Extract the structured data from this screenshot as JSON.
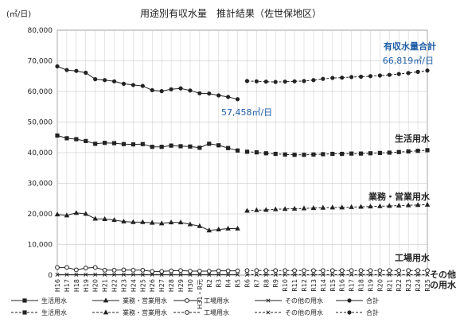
{
  "chart_data": {
    "type": "line",
    "title": "用途別有収水量　推計結果（佐世保地区）",
    "ylabel": "(㎥/日)",
    "ylim": [
      0,
      80000
    ],
    "yticks": [
      "0",
      "10,000",
      "20,000",
      "30,000",
      "40,000",
      "50,000",
      "60,000",
      "70,000",
      "80,000"
    ],
    "ytick_values": [
      0,
      10000,
      20000,
      30000,
      40000,
      50000,
      60000,
      70000,
      80000
    ],
    "grid": true,
    "categories": [
      "H16",
      "H17",
      "H18",
      "H19",
      "H20",
      "H21",
      "H22",
      "H23",
      "H24",
      "H25",
      "H26",
      "H27",
      "H28",
      "H29",
      "H30",
      "H31・R元",
      "R2",
      "R3",
      "R4",
      "R5",
      "R6",
      "R7",
      "R8",
      "R9",
      "R10",
      "R11",
      "R12",
      "R13",
      "R14",
      "R15",
      "R16",
      "R17",
      "R18",
      "R19",
      "R20",
      "R21",
      "R22",
      "R23",
      "R24",
      "R25"
    ],
    "series": [
      {
        "name": "生活用水",
        "kind": "actual",
        "color": "#222222",
        "marker": "square",
        "values": [
          45600,
          44700,
          44400,
          43800,
          42900,
          43200,
          43100,
          42800,
          42700,
          42800,
          41900,
          41900,
          42300,
          42100,
          42000,
          41600,
          42900,
          42400,
          41500,
          40700,
          null,
          null,
          null,
          null,
          null,
          null,
          null,
          null,
          null,
          null,
          null,
          null,
          null,
          null,
          null,
          null,
          null,
          null,
          null,
          null
        ]
      },
      {
        "name": "生活用水",
        "kind": "estimate",
        "color": "#222222",
        "marker": "square",
        "values": [
          null,
          null,
          null,
          null,
          null,
          null,
          null,
          null,
          null,
          null,
          null,
          null,
          null,
          null,
          null,
          null,
          null,
          null,
          null,
          null,
          40300,
          40100,
          39800,
          39600,
          39400,
          39300,
          39300,
          39400,
          39500,
          39600,
          39600,
          39700,
          39700,
          39800,
          39900,
          40000,
          40200,
          40400,
          40600,
          40800
        ]
      },
      {
        "name": "業務・営業用水",
        "kind": "actual",
        "color": "#222222",
        "marker": "triangle",
        "values": [
          19800,
          19500,
          20300,
          20000,
          18400,
          18300,
          18000,
          17500,
          17300,
          17300,
          17100,
          16900,
          17200,
          17200,
          16600,
          16000,
          14600,
          14900,
          15200,
          15200,
          null,
          null,
          null,
          null,
          null,
          null,
          null,
          null,
          null,
          null,
          null,
          null,
          null,
          null,
          null,
          null,
          null,
          null,
          null,
          null
        ]
      },
      {
        "name": "業務・営業用水",
        "kind": "estimate",
        "color": "#222222",
        "marker": "triangle",
        "values": [
          null,
          null,
          null,
          null,
          null,
          null,
          null,
          null,
          null,
          null,
          null,
          null,
          null,
          null,
          null,
          null,
          null,
          null,
          null,
          null,
          21000,
          21200,
          21300,
          21500,
          21600,
          21700,
          21800,
          21900,
          22000,
          22100,
          22100,
          22200,
          22300,
          22400,
          22500,
          22600,
          22700,
          22800,
          22900,
          23000
        ]
      },
      {
        "name": "工場用水",
        "kind": "actual",
        "color": "#222222",
        "marker": "circle",
        "values": [
          2500,
          2500,
          1700,
          2300,
          2500,
          1600,
          1600,
          1700,
          1600,
          1600,
          1200,
          1200,
          1400,
          1500,
          1300,
          1300,
          1300,
          1400,
          1400,
          1400,
          null,
          null,
          null,
          null,
          null,
          null,
          null,
          null,
          null,
          null,
          null,
          null,
          null,
          null,
          null,
          null,
          null,
          null,
          null,
          null
        ]
      },
      {
        "name": "工場用水",
        "kind": "estimate",
        "color": "#222222",
        "marker": "circle",
        "values": [
          null,
          null,
          null,
          null,
          null,
          null,
          null,
          null,
          null,
          null,
          null,
          null,
          null,
          null,
          null,
          null,
          null,
          null,
          null,
          null,
          1500,
          1500,
          1500,
          1500,
          1500,
          1500,
          1500,
          1500,
          1500,
          1500,
          1500,
          1500,
          1500,
          1500,
          1500,
          1500,
          1500,
          1500,
          1500,
          1500
        ]
      },
      {
        "name": "その他の用水",
        "kind": "actual",
        "color": "#222222",
        "marker": "x",
        "values": [
          150,
          150,
          150,
          150,
          150,
          150,
          150,
          150,
          150,
          150,
          150,
          150,
          150,
          150,
          150,
          150,
          150,
          150,
          150,
          150,
          null,
          null,
          null,
          null,
          null,
          null,
          null,
          null,
          null,
          null,
          null,
          null,
          null,
          null,
          null,
          null,
          null,
          null,
          null,
          null
        ]
      },
      {
        "name": "その他の用水",
        "kind": "estimate",
        "color": "#222222",
        "marker": "x",
        "values": [
          null,
          null,
          null,
          null,
          null,
          null,
          null,
          null,
          null,
          null,
          null,
          null,
          null,
          null,
          null,
          null,
          null,
          null,
          null,
          null,
          150,
          150,
          150,
          150,
          150,
          150,
          150,
          150,
          150,
          150,
          150,
          150,
          150,
          150,
          150,
          150,
          150,
          150,
          150,
          150
        ]
      },
      {
        "name": "合計",
        "kind": "actual",
        "color": "#222222",
        "marker": "dot",
        "values": [
          68200,
          67000,
          66700,
          66100,
          64000,
          63700,
          63300,
          62500,
          62100,
          61800,
          60400,
          60100,
          60700,
          61000,
          60300,
          59400,
          59300,
          58700,
          58200,
          57458,
          null,
          null,
          null,
          null,
          null,
          null,
          null,
          null,
          null,
          null,
          null,
          null,
          null,
          null,
          null,
          null,
          null,
          null,
          null,
          null
        ]
      },
      {
        "name": "合計",
        "kind": "estimate",
        "color": "#222222",
        "marker": "dot",
        "values": [
          null,
          null,
          null,
          null,
          null,
          null,
          null,
          null,
          null,
          null,
          null,
          null,
          null,
          null,
          null,
          null,
          null,
          null,
          null,
          null,
          63400,
          63300,
          63200,
          63100,
          63200,
          63300,
          63400,
          63700,
          64100,
          64400,
          64500,
          64700,
          64800,
          65000,
          65200,
          65400,
          65700,
          66000,
          66400,
          66819
        ]
      }
    ],
    "annotations": {
      "actual_end": "57,458㎥/日",
      "estimate_end": "66,819㎥/日",
      "label_total": "有収水量合計",
      "label_life": "生活用水",
      "label_business": "業務・営業用水",
      "label_factory": "工場用水",
      "label_other_1": "その他",
      "label_other_2": "の用水",
      "annotation_color": "#1f5fa8"
    },
    "legend": {
      "placement": "bottom",
      "entries": [
        {
          "label": "生活用水",
          "style": "solid",
          "marker": "square"
        },
        {
          "label": "生活用水",
          "style": "dashed",
          "marker": "square"
        },
        {
          "label": "業務・営業用水",
          "style": "solid",
          "marker": "triangle"
        },
        {
          "label": "業務・営業用水",
          "style": "dashed",
          "marker": "triangle"
        },
        {
          "label": "工場用水",
          "style": "solid",
          "marker": "circle"
        },
        {
          "label": "工場用水",
          "style": "dashed",
          "marker": "circle"
        },
        {
          "label": "その他の用水",
          "style": "solid",
          "marker": "x"
        },
        {
          "label": "その他の用水",
          "style": "dashed",
          "marker": "x"
        },
        {
          "label": "合計",
          "style": "solid",
          "marker": "dot"
        },
        {
          "label": "合計",
          "style": "dashed",
          "marker": "dot"
        }
      ]
    }
  }
}
